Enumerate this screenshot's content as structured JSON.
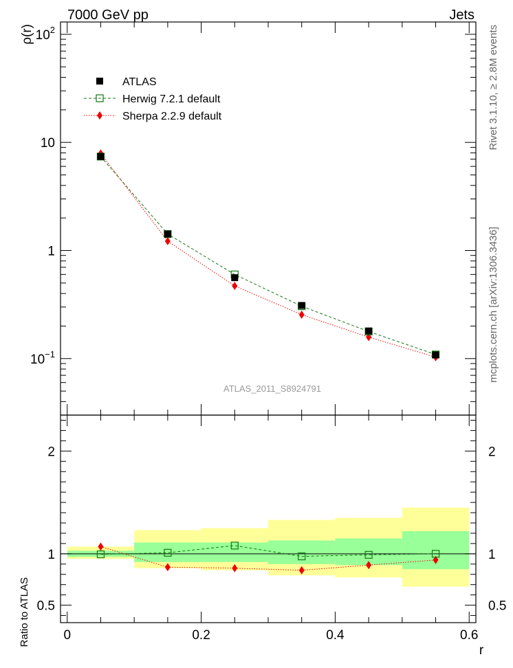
{
  "header": {
    "left_title": "7000 GeV pp",
    "right_title": "Jets",
    "side_text_1": "Rivet 3.1.10, ≥ 2.8M events",
    "side_text_2": "mcplots.cern.ch [arXiv:1306.3436]",
    "watermark": "ATLAS_2011_S8924791"
  },
  "chart_data": [
    {
      "type": "scatter",
      "ylabel": "ρ(r)",
      "log_y": true,
      "ylim": [
        0.03,
        130
      ],
      "xlim": [
        -0.01,
        0.61
      ],
      "x": [
        0.05,
        0.15,
        0.25,
        0.35,
        0.45,
        0.55
      ],
      "y_ticks": [
        {
          "value": 100,
          "base": "10",
          "exp": "2"
        },
        {
          "value": 10,
          "base": "10",
          "exp": ""
        },
        {
          "value": 1,
          "base": "1",
          "exp": ""
        },
        {
          "value": 0.1,
          "base": "10",
          "exp": "−1"
        }
      ],
      "legend_position": "top-left",
      "series": [
        {
          "name": "ATLAS",
          "marker": "filled-square",
          "color": "#000000",
          "values": [
            7.4,
            1.42,
            0.56,
            0.31,
            0.18,
            0.108
          ]
        },
        {
          "name": "Herwig 7.2.1 default",
          "marker": "open-square",
          "line": "dashed",
          "color": "#117711",
          "values": [
            7.4,
            1.42,
            0.6,
            0.305,
            0.178,
            0.109
          ]
        },
        {
          "name": "Sherpa 2.2.9 default",
          "marker": "diamond",
          "line": "dotted",
          "color": "#ee0000",
          "values": [
            7.9,
            1.22,
            0.47,
            0.255,
            0.158,
            0.103
          ]
        }
      ]
    },
    {
      "type": "scatter",
      "ylabel": "Ratio to ATLAS",
      "xlabel": "r",
      "ylim": [
        0.33,
        2.35
      ],
      "xlim": [
        -0.01,
        0.61
      ],
      "x_ticks": [
        {
          "value": 0,
          "label": "0"
        },
        {
          "value": 0.2,
          "label": "0.2"
        },
        {
          "value": 0.4,
          "label": "0.4"
        },
        {
          "value": 0.6,
          "label": "0.6"
        }
      ],
      "y_ticks": [
        {
          "value": 2,
          "label": "2"
        },
        {
          "value": 1,
          "label": "1"
        },
        {
          "value": 0.5,
          "label": "0.5"
        }
      ],
      "bands": {
        "bin_edges": [
          0,
          0.1,
          0.2,
          0.3,
          0.4,
          0.5,
          0.6
        ],
        "inner_color": "#99ff99",
        "outer_color": "#ffff99",
        "inner": [
          [
            0.97,
            1.03
          ],
          [
            0.92,
            1.11
          ],
          [
            0.92,
            1.11
          ],
          [
            0.9,
            1.13
          ],
          [
            0.89,
            1.15
          ],
          [
            0.85,
            1.22
          ]
        ],
        "outer": [
          [
            0.95,
            1.07
          ],
          [
            0.86,
            1.23
          ],
          [
            0.84,
            1.25
          ],
          [
            0.79,
            1.33
          ],
          [
            0.77,
            1.35
          ],
          [
            0.68,
            1.45
          ]
        ]
      },
      "series": [
        {
          "name": "Herwig 7.2.1 default",
          "values": [
            0.995,
            1.01,
            1.08,
            0.975,
            0.99,
            1.0
          ]
        },
        {
          "name": "Sherpa 2.2.9 default",
          "values": [
            1.07,
            0.87,
            0.86,
            0.84,
            0.89,
            0.94
          ]
        }
      ]
    }
  ]
}
